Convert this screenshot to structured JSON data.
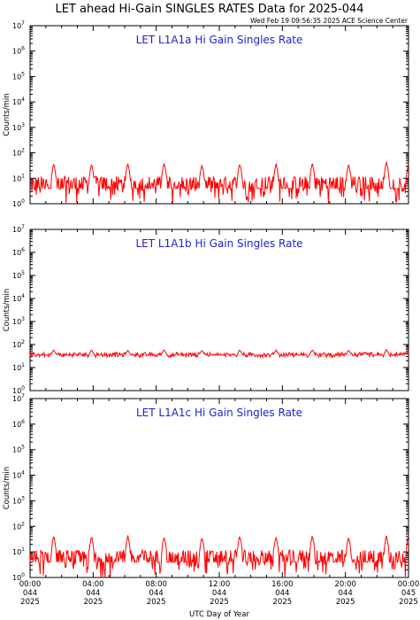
{
  "header": {
    "title": "LET ahead Hi-Gain SINGLES RATES Data for 2025-044",
    "timestamp": "Wed Feb 19 09:56:35 2025 ACE Science Center"
  },
  "colors": {
    "series": "#ff0000",
    "panel_title": "#1f1fd0",
    "axes": "#000000"
  },
  "chart_data": [
    {
      "type": "line",
      "title": "LET L1A1a Hi Gain Singles Rate",
      "ylabel": "Counts/min",
      "xlabel": "UTC Day of Year",
      "yscale": "log",
      "ylim": [
        1,
        10000000
      ],
      "xlim": [
        0,
        24
      ],
      "grid": false,
      "series": [
        {
          "baseline": 4,
          "noise_range": [
            1,
            12
          ],
          "spike_times_hours": [
            1.5,
            3.9,
            6.2,
            8.5,
            10.9,
            13.3,
            15.6,
            17.9,
            20.2,
            22.6,
            24.0
          ],
          "spike_peaks": [
            40,
            38,
            40,
            42,
            35,
            40,
            38,
            42,
            37,
            45,
            40
          ]
        }
      ]
    },
    {
      "type": "line",
      "title": "LET L1A1b Hi Gain Singles Rate",
      "ylabel": "Counts/min",
      "xlabel": "UTC Day of Year",
      "yscale": "log",
      "ylim": [
        1,
        10000000
      ],
      "xlim": [
        0,
        24
      ],
      "grid": false,
      "series": [
        {
          "baseline": 35,
          "noise_range": [
            28,
            45
          ],
          "spike_times_hours": [
            1.5,
            3.9,
            6.2,
            8.5,
            10.9,
            13.3,
            15.6,
            17.9,
            20.2,
            22.6,
            24.0
          ],
          "spike_peaks": [
            60,
            60,
            58,
            62,
            58,
            60,
            60,
            62,
            58,
            62,
            60
          ]
        }
      ]
    },
    {
      "type": "line",
      "title": "LET L1A1c Hi Gain Singles Rate",
      "ylabel": "Counts/min",
      "xlabel": "UTC Day of Year",
      "yscale": "log",
      "ylim": [
        1,
        10000000
      ],
      "xlim": [
        0,
        24
      ],
      "grid": false,
      "series": [
        {
          "baseline": 4,
          "noise_range": [
            1,
            12
          ],
          "spike_times_hours": [
            1.5,
            3.9,
            6.2,
            8.5,
            10.9,
            13.3,
            15.6,
            17.9,
            20.2,
            22.6,
            24.0
          ],
          "spike_peaks": [
            45,
            42,
            45,
            42,
            40,
            45,
            42,
            45,
            40,
            45,
            48
          ]
        }
      ]
    }
  ],
  "y_tick_labels": [
    {
      "base": "10",
      "exp": "0"
    },
    {
      "base": "10",
      "exp": "1"
    },
    {
      "base": "10",
      "exp": "2"
    },
    {
      "base": "10",
      "exp": "3"
    },
    {
      "base": "10",
      "exp": "4"
    },
    {
      "base": "10",
      "exp": "5"
    },
    {
      "base": "10",
      "exp": "6"
    },
    {
      "base": "10",
      "exp": "7"
    }
  ],
  "x_tick_labels": [
    {
      "time": "00:00",
      "doy": "044",
      "year": "2025"
    },
    {
      "time": "04:00",
      "doy": "044",
      "year": "2025"
    },
    {
      "time": "08:00",
      "doy": "044",
      "year": "2025"
    },
    {
      "time": "12:00",
      "doy": "044",
      "year": "2025"
    },
    {
      "time": "16:00",
      "doy": "044",
      "year": "2025"
    },
    {
      "time": "20:00",
      "doy": "044",
      "year": "2025"
    },
    {
      "time": "00:00",
      "doy": "045",
      "year": "2025"
    }
  ]
}
